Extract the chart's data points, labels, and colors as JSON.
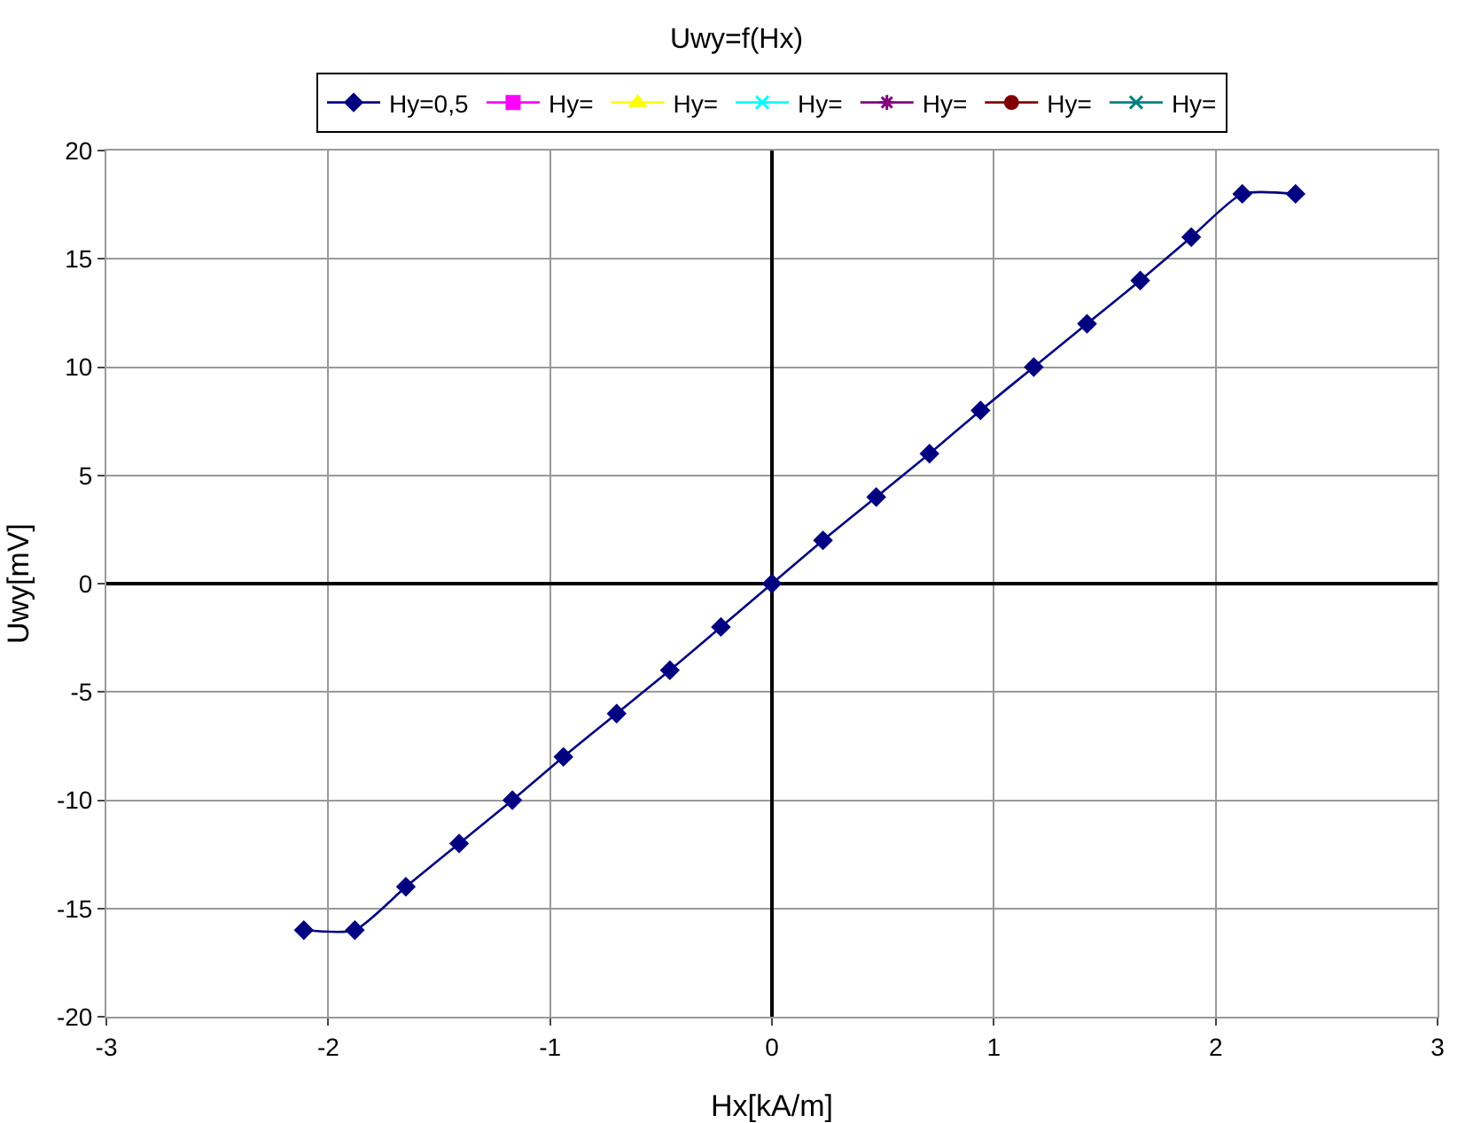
{
  "chart_data": {
    "type": "line",
    "title": "Uwy=f(Hx)",
    "xlabel": "Hx[kA/m]",
    "ylabel": "Uwy[mV]",
    "xlim": [
      -3,
      3
    ],
    "xticks": [
      -3,
      -2,
      -1,
      0,
      1,
      2,
      3
    ],
    "ylim": [
      -20,
      20
    ],
    "yticks": [
      -20,
      -15,
      -10,
      -5,
      0,
      5,
      10,
      15,
      20
    ],
    "grid": true,
    "legend": "top",
    "series": [
      {
        "name": "Hy=0,5",
        "color": "#000080",
        "marker": "diamond",
        "x": [
          -2.11,
          -1.88,
          -1.65,
          -1.41,
          -1.17,
          -0.94,
          -0.7,
          -0.46,
          -0.23,
          0,
          0.23,
          0.47,
          0.71,
          0.94,
          1.18,
          1.42,
          1.66,
          1.89,
          2.12,
          2.36
        ],
        "values": [
          -16,
          -16,
          -14,
          -12,
          -10,
          -8,
          -6,
          -4,
          -2,
          0,
          2,
          4,
          6,
          8,
          10,
          12,
          14,
          16,
          18,
          18
        ]
      },
      {
        "name": "Hy=",
        "color": "#ff00ff",
        "marker": "square"
      },
      {
        "name": "Hy=",
        "color": "#ffff00",
        "marker": "triangle"
      },
      {
        "name": "Hy=",
        "color": "#00ffff",
        "marker": "cross"
      },
      {
        "name": "Hy=",
        "color": "#800080",
        "marker": "star"
      },
      {
        "name": "Hy=",
        "color": "#800000",
        "marker": "circle"
      },
      {
        "name": "Hy=",
        "color": "#008080",
        "marker": "cross"
      }
    ]
  }
}
